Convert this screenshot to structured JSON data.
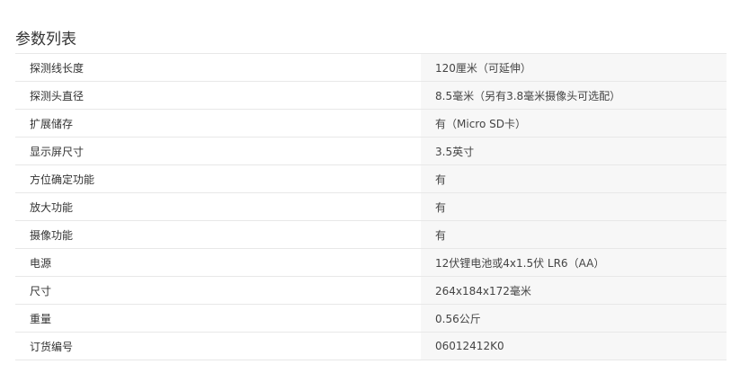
{
  "title": "参数列表",
  "rows": [
    {
      "label": "探测线长度",
      "value": "120厘米（可延伸）"
    },
    {
      "label": "探测头直径",
      "value": "8.5毫米（另有3.8毫米摄像头可选配）"
    },
    {
      "label": "扩展储存",
      "value": "有（Micro SD卡）"
    },
    {
      "label": "显示屏尺寸",
      "value": "3.5英寸"
    },
    {
      "label": "方位确定功能",
      "value": "有"
    },
    {
      "label": "放大功能",
      "value": "有"
    },
    {
      "label": "摄像功能",
      "value": "有"
    },
    {
      "label": "电源",
      "value": "12伏锂电池或4x1.5伏 LR6（AA）"
    },
    {
      "label": "尺寸",
      "value": "264x184x172毫米"
    },
    {
      "label": "重量",
      "value": "0.56公斤"
    },
    {
      "label": "订货编号",
      "value": "06012412K0"
    }
  ]
}
